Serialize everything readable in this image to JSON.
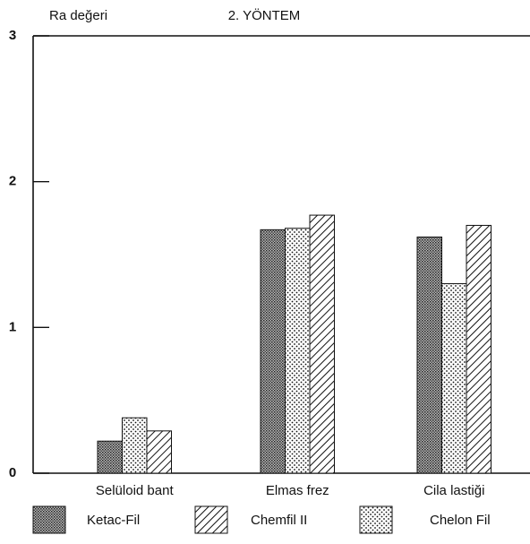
{
  "chart_data": {
    "type": "bar",
    "title": "2. YÖNTEM",
    "y_label": "Ra değeri",
    "categories": [
      "Selüloid bant",
      "Elmas frez",
      "Cila lastiği"
    ],
    "series": [
      {
        "name": "Ketac-Fil",
        "values": [
          0.22,
          1.67,
          1.62
        ]
      },
      {
        "name": "Chemfil II",
        "values": [
          0.29,
          1.77,
          1.7
        ]
      },
      {
        "name": "Chelon Fil",
        "values": [
          0.38,
          1.68,
          1.3
        ]
      }
    ],
    "ylim": [
      0,
      3
    ],
    "yticks": [
      0,
      1,
      2,
      3
    ]
  }
}
